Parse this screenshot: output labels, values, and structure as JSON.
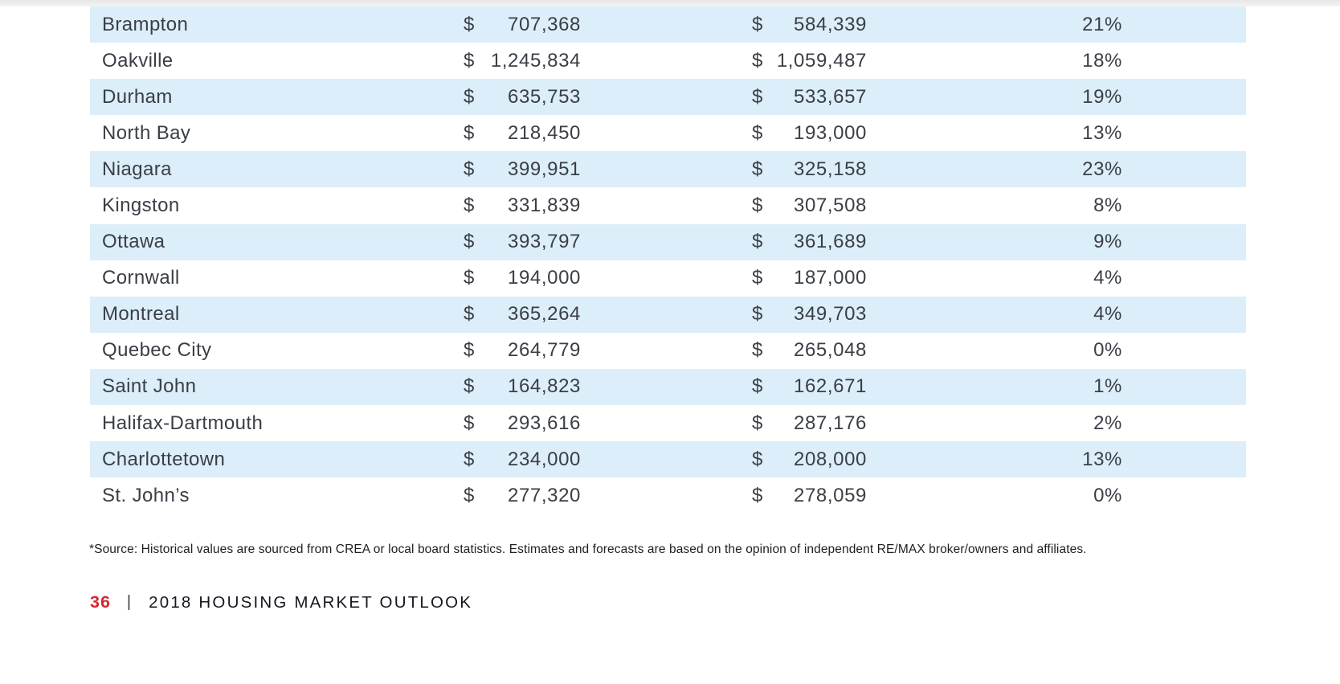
{
  "table": {
    "currency_symbol": "$",
    "rows": [
      {
        "region": "Brampton",
        "value1": "707,368",
        "value2": "584,339",
        "change": "21%"
      },
      {
        "region": "Oakville",
        "value1": "1,245,834",
        "value2": "1,059,487",
        "change": "18%"
      },
      {
        "region": "Durham",
        "value1": "635,753",
        "value2": "533,657",
        "change": "19%"
      },
      {
        "region": "North Bay",
        "value1": "218,450",
        "value2": "193,000",
        "change": "13%"
      },
      {
        "region": "Niagara",
        "value1": "399,951",
        "value2": "325,158",
        "change": "23%"
      },
      {
        "region": "Kingston",
        "value1": "331,839",
        "value2": "307,508",
        "change": "8%"
      },
      {
        "region": "Ottawa",
        "value1": "393,797",
        "value2": "361,689",
        "change": "9%"
      },
      {
        "region": "Cornwall",
        "value1": "194,000",
        "value2": "187,000",
        "change": "4%"
      },
      {
        "region": "Montreal",
        "value1": "365,264",
        "value2": "349,703",
        "change": "4%"
      },
      {
        "region": "Quebec City",
        "value1": "264,779",
        "value2": "265,048",
        "change": "0%"
      },
      {
        "region": "Saint John",
        "value1": "164,823",
        "value2": "162,671",
        "change": "1%"
      },
      {
        "region": "Halifax-Dartmouth",
        "value1": "293,616",
        "value2": "287,176",
        "change": "2%"
      },
      {
        "region": "Charlottetown",
        "value1": "234,000",
        "value2": "208,000",
        "change": "13%"
      },
      {
        "region": "St. John’s",
        "value1": "277,320",
        "value2": "278,059",
        "change": "0%"
      }
    ]
  },
  "footnote": "*Source: Historical values are sourced from CREA or local board statistics. Estimates and forecasts are based on the opinion of independent RE/MAX broker/owners and affiliates.",
  "footer": {
    "page_number": "36",
    "separator": "|",
    "title": "2018 HOUSING MARKET OUTLOOK"
  },
  "colors": {
    "row_shading": "#dceef9",
    "accent_red": "#d8252f",
    "text_dark": "#3a3e46"
  }
}
